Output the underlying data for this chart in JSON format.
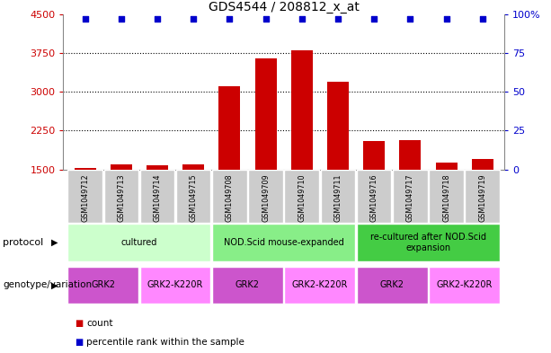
{
  "title": "GDS4544 / 208812_x_at",
  "samples": [
    "GSM1049712",
    "GSM1049713",
    "GSM1049714",
    "GSM1049715",
    "GSM1049708",
    "GSM1049709",
    "GSM1049710",
    "GSM1049711",
    "GSM1049716",
    "GSM1049717",
    "GSM1049718",
    "GSM1049719"
  ],
  "counts": [
    1530,
    1600,
    1580,
    1595,
    3100,
    3650,
    3800,
    3200,
    2050,
    2060,
    1640,
    1700
  ],
  "percentiles": [
    97,
    97,
    97,
    97,
    97,
    97,
    97,
    97,
    97,
    97,
    97,
    97
  ],
  "ylim_left": [
    1500,
    4500
  ],
  "ylim_right": [
    0,
    100
  ],
  "yticks_left": [
    1500,
    2250,
    3000,
    3750,
    4500
  ],
  "yticks_right": [
    0,
    25,
    50,
    75,
    100
  ],
  "ytick_right_labels": [
    "0",
    "25",
    "50",
    "75",
    "100%"
  ],
  "bar_color": "#cc0000",
  "dot_color": "#0000cc",
  "bar_width": 0.6,
  "protocol_groups": [
    {
      "label": "cultured",
      "start": 0,
      "end": 3,
      "color": "#ccffcc"
    },
    {
      "label": "NOD.Scid mouse-expanded",
      "start": 4,
      "end": 7,
      "color": "#88ee88"
    },
    {
      "label": "re-cultured after NOD.Scid\nexpansion",
      "start": 8,
      "end": 11,
      "color": "#44cc44"
    }
  ],
  "genotype_groups": [
    {
      "label": "GRK2",
      "start": 0,
      "end": 1,
      "color": "#cc55cc"
    },
    {
      "label": "GRK2-K220R",
      "start": 2,
      "end": 3,
      "color": "#ff88ff"
    },
    {
      "label": "GRK2",
      "start": 4,
      "end": 5,
      "color": "#cc55cc"
    },
    {
      "label": "GRK2-K220R",
      "start": 6,
      "end": 7,
      "color": "#ff88ff"
    },
    {
      "label": "GRK2",
      "start": 8,
      "end": 9,
      "color": "#cc55cc"
    },
    {
      "label": "GRK2-K220R",
      "start": 10,
      "end": 11,
      "color": "#ff88ff"
    }
  ],
  "legend_items": [
    {
      "label": "count",
      "color": "#cc0000"
    },
    {
      "label": "percentile rank within the sample",
      "color": "#0000cc"
    }
  ],
  "left_axis_color": "#cc0000",
  "right_axis_color": "#0000cc",
  "background_color": "#ffffff",
  "grid_color": "#555555",
  "sample_box_color": "#cccccc"
}
